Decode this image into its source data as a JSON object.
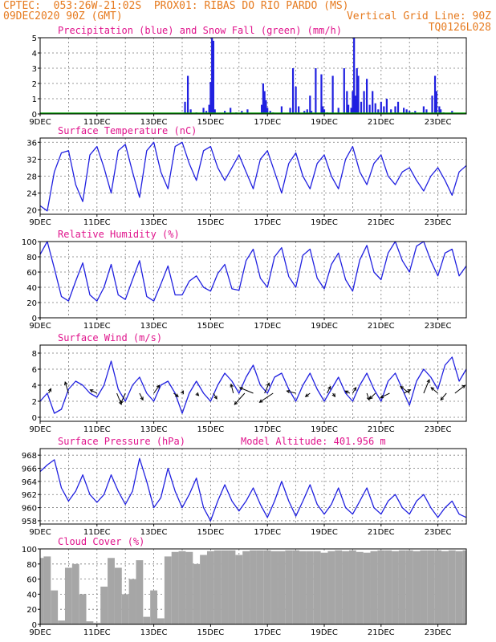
{
  "header": {
    "line1": "CPTEC:  053:26W-21:02S  PROX01: RIBAS DO RIO PARDO (MS)",
    "line2_left": "09DEC2020 90Z (GMT)",
    "line2_right": "Vertical Grid Line: 90Z",
    "line3_right": "TQ0126L028"
  },
  "x_ticks": [
    "9DEC",
    "11DEC",
    "13DEC",
    "15DEC",
    "17DEC",
    "19DEC",
    "21DEC",
    "23DEC"
  ],
  "colors": {
    "header": "#e67a1e",
    "title": "#e0148c",
    "series": "#2020e0",
    "snow": "#00a000",
    "cloud": "#a6a6a6",
    "grid": "#7a7a7a"
  },
  "chart_data": [
    {
      "id": "precip",
      "type": "bar",
      "title": "Precipitation (blue) and Snow Fall (green) (mm/h)",
      "ylim": [
        0,
        5
      ],
      "yticks": [
        0,
        1,
        2,
        3,
        4,
        5
      ],
      "x_range_days": [
        9,
        24
      ],
      "series": [
        {
          "name": "Precipitation",
          "color": "#2020e0",
          "x": [
            14.1,
            14.2,
            14.3,
            14.5,
            14.75,
            14.85,
            14.95,
            15.0,
            15.05,
            15.1,
            15.15,
            15.5,
            15.7,
            15.9,
            16.1,
            16.3,
            16.8,
            16.85,
            16.9,
            16.95,
            17.0,
            17.1,
            17.2,
            17.5,
            17.8,
            17.9,
            18.0,
            18.1,
            18.3,
            18.4,
            18.5,
            18.55,
            18.7,
            18.9,
            18.95,
            19.0,
            19.1,
            19.3,
            19.5,
            19.7,
            19.8,
            19.85,
            19.95,
            20.0,
            20.05,
            20.1,
            20.15,
            20.2,
            20.3,
            20.4,
            20.5,
            20.6,
            20.7,
            20.8,
            20.9,
            21.0,
            21.1,
            21.2,
            21.35,
            21.5,
            21.6,
            21.8,
            21.9,
            22.0,
            22.1,
            22.2,
            22.5,
            22.6,
            22.8,
            22.9,
            22.95,
            23.05,
            23.1,
            23.2,
            23.5
          ],
          "values": [
            0.8,
            2.5,
            0.3,
            0.1,
            0.4,
            0.2,
            0.6,
            2.1,
            5.0,
            4.8,
            0.3,
            0.2,
            0.4,
            0.1,
            0.2,
            0.3,
            0.6,
            2.0,
            1.5,
            0.9,
            0.4,
            0.2,
            0.1,
            0.5,
            0.4,
            3.0,
            1.8,
            0.5,
            0.2,
            0.3,
            1.2,
            0.2,
            3.0,
            2.6,
            0.5,
            0.3,
            0.1,
            2.5,
            0.4,
            3.0,
            1.5,
            0.6,
            0.4,
            1.5,
            5.0,
            1.2,
            3.0,
            2.5,
            0.8,
            1.5,
            2.3,
            0.6,
            1.5,
            0.7,
            0.3,
            0.8,
            0.5,
            1.0,
            0.3,
            0.5,
            0.8,
            0.4,
            0.3,
            0.2,
            0.1,
            0.2,
            0.5,
            0.3,
            1.2,
            2.5,
            1.5,
            0.5,
            0.3,
            0.1,
            0.2
          ]
        },
        {
          "name": "Snow Fall",
          "color": "#00a000",
          "x": [
            9,
            24
          ],
          "values": [
            0,
            0
          ]
        }
      ]
    },
    {
      "id": "temp",
      "type": "line",
      "title": "Surface Temperature (nC)",
      "ylim": [
        19,
        37
      ],
      "yticks": [
        20,
        24,
        28,
        32,
        36
      ],
      "x": [
        9.0,
        9.25,
        9.5,
        9.75,
        10.0,
        10.25,
        10.5,
        10.75,
        11.0,
        11.25,
        11.5,
        11.75,
        12.0,
        12.25,
        12.5,
        12.75,
        13.0,
        13.25,
        13.5,
        13.75,
        14.0,
        14.25,
        14.5,
        14.75,
        15.0,
        15.25,
        15.5,
        15.75,
        16.0,
        16.25,
        16.5,
        16.75,
        17.0,
        17.25,
        17.5,
        17.75,
        18.0,
        18.25,
        18.5,
        18.75,
        19.0,
        19.25,
        19.5,
        19.75,
        20.0,
        20.25,
        20.5,
        20.75,
        21.0,
        21.25,
        21.5,
        21.75,
        22.0,
        22.25,
        22.5,
        22.75,
        23.0,
        23.25,
        23.5,
        23.75,
        24.0
      ],
      "series": [
        {
          "name": "Temperature",
          "color": "#2020e0",
          "values": [
            21,
            19.8,
            29,
            33.5,
            34,
            26,
            22,
            33,
            35,
            30,
            24,
            34,
            35.5,
            29,
            23,
            34,
            36,
            29,
            25,
            35,
            36,
            31,
            27,
            34,
            35,
            30,
            27,
            30,
            33,
            29,
            25,
            32,
            34,
            29,
            24,
            31,
            33.5,
            28,
            25,
            31,
            33,
            28,
            25,
            32,
            35,
            29,
            26,
            31,
            33,
            28,
            26,
            29,
            30,
            27,
            24.5,
            28,
            30,
            27,
            23.5,
            29,
            30.5
          ]
        }
      ]
    },
    {
      "id": "rh",
      "type": "line",
      "title": "Relative Humidity (%)",
      "ylim": [
        0,
        100
      ],
      "yticks": [
        0,
        20,
        40,
        60,
        80,
        100
      ],
      "x": [
        9.0,
        9.25,
        9.5,
        9.75,
        10.0,
        10.25,
        10.5,
        10.75,
        11.0,
        11.25,
        11.5,
        11.75,
        12.0,
        12.25,
        12.5,
        12.75,
        13.0,
        13.25,
        13.5,
        13.75,
        14.0,
        14.25,
        14.5,
        14.75,
        15.0,
        15.25,
        15.5,
        15.75,
        16.0,
        16.25,
        16.5,
        16.75,
        17.0,
        17.25,
        17.5,
        17.75,
        18.0,
        18.25,
        18.5,
        18.75,
        19.0,
        19.25,
        19.5,
        19.75,
        20.0,
        20.25,
        20.5,
        20.75,
        21.0,
        21.25,
        21.5,
        21.75,
        22.0,
        22.25,
        22.5,
        22.75,
        23.0,
        23.25,
        23.5,
        23.75,
        24.0
      ],
      "series": [
        {
          "name": "Relative Humidity",
          "color": "#2020e0",
          "values": [
            83,
            100,
            65,
            28,
            22,
            48,
            72,
            30,
            22,
            40,
            70,
            30,
            24,
            50,
            75,
            28,
            22,
            44,
            68,
            30,
            30,
            48,
            55,
            40,
            35,
            58,
            70,
            38,
            36,
            75,
            90,
            52,
            40,
            80,
            92,
            54,
            40,
            82,
            90,
            52,
            38,
            70,
            85,
            50,
            35,
            76,
            95,
            60,
            50,
            85,
            100,
            75,
            60,
            94,
            100,
            75,
            55,
            85,
            90,
            55,
            68
          ]
        }
      ]
    },
    {
      "id": "wind",
      "type": "line",
      "title": "Surface Wind (m/s)",
      "ylim": [
        -0.5,
        9
      ],
      "yticks": [
        0,
        2,
        4,
        6,
        8
      ],
      "x": [
        9.0,
        9.25,
        9.5,
        9.75,
        10.0,
        10.25,
        10.5,
        10.75,
        11.0,
        11.25,
        11.5,
        11.75,
        12.0,
        12.25,
        12.5,
        12.75,
        13.0,
        13.25,
        13.5,
        13.75,
        14.0,
        14.25,
        14.5,
        14.75,
        15.0,
        15.25,
        15.5,
        15.75,
        16.0,
        16.25,
        16.5,
        16.75,
        17.0,
        17.25,
        17.5,
        17.75,
        18.0,
        18.25,
        18.5,
        18.75,
        19.0,
        19.25,
        19.5,
        19.75,
        20.0,
        20.25,
        20.5,
        20.75,
        21.0,
        21.25,
        21.5,
        21.75,
        22.0,
        22.25,
        22.5,
        22.75,
        23.0,
        23.25,
        23.5,
        23.75,
        24.0
      ],
      "series": [
        {
          "name": "Wind Speed",
          "color": "#2020e0",
          "values": [
            2,
            3,
            0.5,
            1,
            3.5,
            4.5,
            4,
            3,
            2.5,
            4,
            7,
            3.5,
            2,
            4,
            5,
            3,
            2,
            4,
            4.5,
            3,
            0.5,
            3,
            4.5,
            3,
            2,
            4,
            5.5,
            4.5,
            3,
            5,
            6.5,
            4,
            3,
            5,
            5.5,
            3.5,
            2,
            4,
            5.5,
            3.5,
            2,
            3.5,
            5,
            3,
            2,
            4,
            5.5,
            3.5,
            2,
            4.5,
            5.5,
            3.5,
            1.5,
            4.5,
            6,
            5,
            3.5,
            6.5,
            7.5,
            4.5,
            6
          ]
        }
      ],
      "vectors": [
        {
          "x": 9.3,
          "u": 0.2,
          "v": 0.4
        },
        {
          "x": 10.0,
          "u": -0.3,
          "v": 1.0
        },
        {
          "x": 11.0,
          "u": -0.6,
          "v": 0.3
        },
        {
          "x": 11.7,
          "u": 0.4,
          "v": -1.0
        },
        {
          "x": 12.0,
          "u": -0.4,
          "v": -0.9
        },
        {
          "x": 12.5,
          "u": 0.3,
          "v": -0.6
        },
        {
          "x": 13.0,
          "u": 0.5,
          "v": 0.7
        },
        {
          "x": 13.7,
          "u": 0.4,
          "v": -0.3
        },
        {
          "x": 14.0,
          "u": 0.1,
          "v": 0.2
        },
        {
          "x": 14.5,
          "u": 0.2,
          "v": -0.2
        },
        {
          "x": 15.1,
          "u": 0.3,
          "v": -0.5
        },
        {
          "x": 15.8,
          "u": -0.2,
          "v": 0.8
        },
        {
          "x": 16.2,
          "u": -0.9,
          "v": -1.0
        },
        {
          "x": 16.5,
          "u": -1.2,
          "v": 0.5
        },
        {
          "x": 16.9,
          "u": 0.4,
          "v": 0.9
        },
        {
          "x": 17.2,
          "u": -1.2,
          "v": -0.8
        },
        {
          "x": 18.0,
          "u": -0.8,
          "v": 0.2
        },
        {
          "x": 18.5,
          "u": -0.4,
          "v": -0.3
        },
        {
          "x": 19.1,
          "u": 0.3,
          "v": 0.6
        },
        {
          "x": 19.3,
          "u": 0.2,
          "v": -0.3
        },
        {
          "x": 19.9,
          "u": -0.4,
          "v": 0.2
        },
        {
          "x": 20.0,
          "u": 0.3,
          "v": 0.5
        },
        {
          "x": 20.5,
          "u": 0.2,
          "v": -0.6
        },
        {
          "x": 20.8,
          "u": -0.5,
          "v": -0.5
        },
        {
          "x": 21.3,
          "u": -0.8,
          "v": -0.4
        },
        {
          "x": 21.8,
          "u": 0.6,
          "v": 0.3
        },
        {
          "x": 22.0,
          "u": -0.8,
          "v": 0.6
        },
        {
          "x": 22.5,
          "u": 0.5,
          "v": 1.2
        },
        {
          "x": 23.0,
          "u": -0.6,
          "v": 0.5
        },
        {
          "x": 23.3,
          "u": -0.5,
          "v": -0.6
        },
        {
          "x": 23.6,
          "u": 0.9,
          "v": 0.7
        }
      ]
    },
    {
      "id": "pressure",
      "type": "line",
      "title": "Surface Pressure (hPa)",
      "subtitle": "Model Altitude: 401.956 m",
      "ylim": [
        957.5,
        969
      ],
      "yticks": [
        958,
        960,
        962,
        964,
        966,
        968
      ],
      "x": [
        9.0,
        9.25,
        9.5,
        9.75,
        10.0,
        10.25,
        10.5,
        10.75,
        11.0,
        11.25,
        11.5,
        11.75,
        12.0,
        12.25,
        12.5,
        12.75,
        13.0,
        13.25,
        13.5,
        13.75,
        14.0,
        14.25,
        14.5,
        14.75,
        15.0,
        15.25,
        15.5,
        15.75,
        16.0,
        16.25,
        16.5,
        16.75,
        17.0,
        17.25,
        17.5,
        17.75,
        18.0,
        18.25,
        18.5,
        18.75,
        19.0,
        19.25,
        19.5,
        19.75,
        20.0,
        20.25,
        20.5,
        20.75,
        21.0,
        21.25,
        21.5,
        21.75,
        22.0,
        22.25,
        22.5,
        22.75,
        23.0,
        23.25,
        23.5,
        23.75,
        24.0
      ],
      "series": [
        {
          "name": "Pressure",
          "color": "#2020e0",
          "values": [
            965.5,
            966.5,
            967.3,
            963,
            961,
            962.5,
            965,
            962,
            960.8,
            962,
            965,
            962.5,
            960.5,
            962.5,
            967.5,
            964,
            960,
            961.5,
            966,
            962.5,
            960,
            962,
            964.5,
            960,
            958,
            961,
            963.5,
            961,
            959.5,
            961,
            963,
            960.5,
            958.5,
            961,
            964,
            961,
            958.7,
            961,
            963.5,
            960.5,
            959,
            960.5,
            963,
            960,
            959,
            961,
            963,
            960,
            959,
            961,
            962,
            960,
            959,
            961,
            962,
            960,
            958.5,
            960,
            961,
            959,
            958.5
          ]
        }
      ]
    },
    {
      "id": "cloud",
      "type": "area",
      "title": "Cloud Cover (%)",
      "ylim": [
        0,
        100
      ],
      "yticks": [
        0,
        20,
        40,
        60,
        80,
        100
      ],
      "x": [
        9.0,
        9.25,
        9.5,
        9.75,
        10.0,
        10.25,
        10.5,
        10.75,
        11.0,
        11.25,
        11.5,
        11.75,
        12.0,
        12.25,
        12.5,
        12.75,
        13.0,
        13.25,
        13.5,
        13.75,
        14.0,
        14.25,
        14.5,
        14.75,
        15.0,
        15.25,
        15.5,
        15.75,
        16.0,
        16.25,
        16.5,
        16.75,
        17.0,
        17.25,
        17.5,
        17.75,
        18.0,
        18.25,
        18.5,
        18.75,
        19.0,
        19.25,
        19.5,
        19.75,
        20.0,
        20.25,
        20.5,
        20.75,
        21.0,
        21.25,
        21.5,
        21.75,
        22.0,
        22.25,
        22.5,
        22.75,
        23.0,
        23.25,
        23.5,
        23.75,
        24.0
      ],
      "series": [
        {
          "name": "Cloud Cover",
          "color": "#a6a6a6",
          "values": [
            88,
            90,
            45,
            5,
            75,
            80,
            40,
            4,
            2,
            50,
            88,
            75,
            40,
            60,
            85,
            10,
            45,
            8,
            90,
            96,
            97,
            96,
            80,
            92,
            97,
            98,
            98,
            98,
            92,
            97,
            98,
            98,
            98,
            97,
            97,
            98,
            98,
            97,
            97,
            97,
            95,
            97,
            98,
            97,
            98,
            96,
            95,
            97,
            98,
            98,
            97,
            98,
            98,
            97,
            98,
            98,
            98,
            97,
            98,
            97,
            98
          ]
        }
      ]
    }
  ]
}
